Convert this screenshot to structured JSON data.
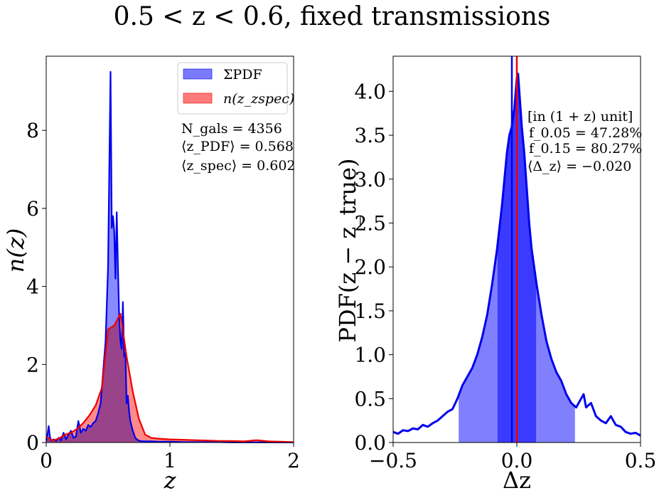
{
  "figure": {
    "suptitle": "0.5 < z < 0.6, fixed transmissions"
  },
  "chart_data": [
    {
      "type": "area",
      "xlabel": "z",
      "ylabel": "n(z)",
      "xlim": [
        0,
        2
      ],
      "ylim": [
        0,
        9.9
      ],
      "xticks": [
        0,
        1,
        2
      ],
      "yticks": [
        0,
        2,
        4,
        6,
        8
      ],
      "legend": {
        "placement": "top-right",
        "entries": [
          {
            "label": "ΣPDF",
            "color": "#7a7aff"
          },
          {
            "label": "n(z_zspec)",
            "color": "#ff7a7a"
          }
        ]
      },
      "annotations": [
        "N_gals = 4356",
        "⟨z_PDF⟩ = 0.568",
        "⟨z_spec⟩ = 0.602"
      ],
      "series": [
        {
          "name": "ΣPDF",
          "color": "#0000ee",
          "fill": "#7a7aff",
          "x": [
            0,
            0.01,
            0.02,
            0.03,
            0.04,
            0.06,
            0.08,
            0.1,
            0.12,
            0.14,
            0.16,
            0.18,
            0.2,
            0.22,
            0.24,
            0.26,
            0.28,
            0.3,
            0.32,
            0.34,
            0.36,
            0.38,
            0.4,
            0.42,
            0.44,
            0.46,
            0.48,
            0.5,
            0.51,
            0.52,
            0.53,
            0.54,
            0.55,
            0.56,
            0.57,
            0.58,
            0.59,
            0.6,
            0.61,
            0.62,
            0.63,
            0.64,
            0.65,
            0.66,
            0.67,
            0.68,
            0.7,
            0.72,
            0.74,
            0.76,
            0.78,
            0.8,
            0.85,
            0.9,
            0.95,
            1.0,
            1.1,
            1.2,
            1.3,
            1.4,
            1.5,
            1.6,
            1.7,
            1.8,
            1.9,
            2.0
          ],
          "y": [
            0.05,
            0.2,
            0.42,
            0.15,
            0.05,
            0.08,
            0.04,
            0.12,
            0.05,
            0.25,
            0.08,
            0.2,
            0.3,
            0.12,
            0.15,
            0.55,
            0.25,
            0.35,
            0.3,
            0.45,
            0.4,
            0.5,
            0.55,
            0.75,
            1.0,
            1.8,
            2.6,
            4.5,
            7.0,
            9.5,
            5.5,
            5.8,
            5.4,
            4.2,
            5.9,
            4.5,
            3.2,
            2.6,
            2.4,
            3.6,
            2.2,
            2.3,
            1.0,
            1.2,
            0.8,
            0.55,
            0.3,
            0.12,
            0.06,
            0.04,
            0.03,
            0.03,
            0.03,
            0.02,
            0.02,
            0.02,
            0.01,
            0.01,
            0.01,
            0.01,
            0.005,
            0.005,
            0.005,
            0.005,
            0.005,
            0.005
          ]
        },
        {
          "name": "n(z_zspec)",
          "color": "#ee0000",
          "fill": "#ff7a7a",
          "x": [
            0,
            0.05,
            0.1,
            0.15,
            0.2,
            0.25,
            0.3,
            0.35,
            0.4,
            0.45,
            0.5,
            0.55,
            0.6,
            0.65,
            0.7,
            0.75,
            0.8,
            0.85,
            0.9,
            1.0,
            1.1,
            1.2,
            1.3,
            1.4,
            1.5,
            1.6,
            1.7,
            1.8,
            1.9,
            2.0
          ],
          "y": [
            0.15,
            0.05,
            0.1,
            0.2,
            0.25,
            0.35,
            0.5,
            0.7,
            0.95,
            1.4,
            2.9,
            3.0,
            3.3,
            2.2,
            1.3,
            0.6,
            0.2,
            0.12,
            0.1,
            0.08,
            0.07,
            0.06,
            0.05,
            0.04,
            0.04,
            0.03,
            0.06,
            0.03,
            0.02,
            0.01
          ]
        }
      ]
    },
    {
      "type": "area",
      "xlabel": "Δz",
      "ylabel": "PDF(z − z_true)",
      "xlim": [
        -0.5,
        0.5
      ],
      "ylim": [
        0,
        4.4
      ],
      "xticks": [
        -0.5,
        0.0,
        0.5
      ],
      "yticks": [
        0.0,
        0.5,
        1.0,
        1.5,
        2.0,
        2.5,
        3.0,
        3.5,
        4.0
      ],
      "annotations": [
        "[in (1 + z) unit]",
        "f_0.05 = 47.28%",
        "f_0.15 = 80.27%",
        "⟨Δ_z⟩ = −0.020"
      ],
      "shaded_bands": [
        {
          "from": -0.235,
          "to": 0.235,
          "color": "#8080ff"
        },
        {
          "from": -0.078,
          "to": 0.078,
          "color": "#3b3bff"
        }
      ],
      "vertical_lines": [
        {
          "x": -0.02,
          "color": "#0000ee"
        },
        {
          "x": 0.0,
          "color": "#ee0000"
        }
      ],
      "series": [
        {
          "name": "",
          "color": "#0000ee",
          "x": [
            -0.5,
            -0.48,
            -0.46,
            -0.44,
            -0.42,
            -0.4,
            -0.38,
            -0.36,
            -0.34,
            -0.32,
            -0.3,
            -0.28,
            -0.26,
            -0.24,
            -0.22,
            -0.2,
            -0.18,
            -0.16,
            -0.14,
            -0.12,
            -0.1,
            -0.08,
            -0.06,
            -0.05,
            -0.04,
            -0.03,
            -0.02,
            -0.01,
            0.0,
            0.005,
            0.01,
            0.02,
            0.03,
            0.04,
            0.05,
            0.06,
            0.08,
            0.1,
            0.12,
            0.14,
            0.16,
            0.18,
            0.2,
            0.22,
            0.24,
            0.26,
            0.27,
            0.28,
            0.3,
            0.32,
            0.34,
            0.36,
            0.38,
            0.4,
            0.42,
            0.44,
            0.46,
            0.48,
            0.5
          ],
          "y": [
            0.12,
            0.1,
            0.14,
            0.13,
            0.16,
            0.15,
            0.2,
            0.18,
            0.22,
            0.25,
            0.3,
            0.35,
            0.38,
            0.5,
            0.65,
            0.75,
            0.85,
            1.0,
            1.2,
            1.45,
            1.8,
            2.2,
            2.7,
            3.0,
            3.3,
            3.5,
            3.6,
            3.8,
            4.15,
            4.2,
            4.0,
            3.6,
            3.3,
            2.9,
            2.5,
            2.2,
            1.8,
            1.45,
            1.15,
            0.95,
            0.8,
            0.7,
            0.55,
            0.45,
            0.4,
            0.5,
            0.55,
            0.4,
            0.45,
            0.3,
            0.25,
            0.22,
            0.3,
            0.2,
            0.18,
            0.12,
            0.1,
            0.11,
            0.08
          ]
        }
      ]
    }
  ]
}
